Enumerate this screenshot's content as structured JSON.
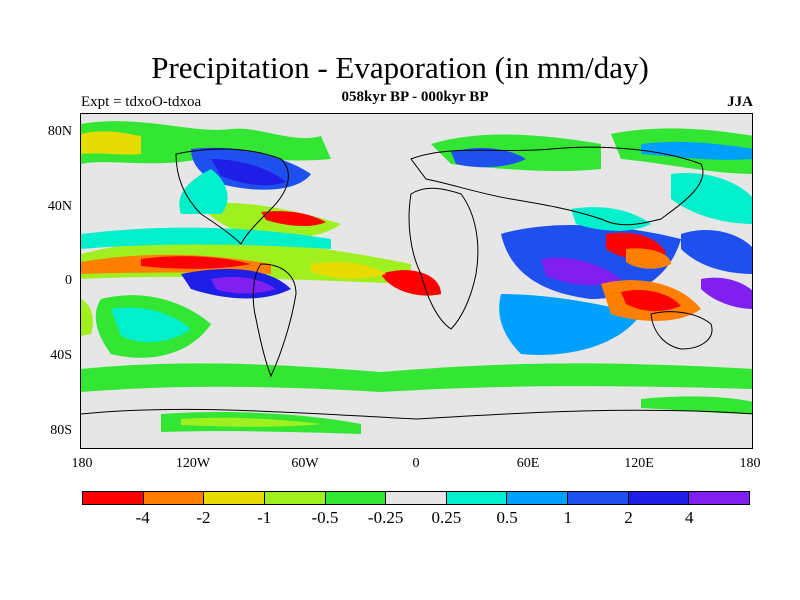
{
  "title": "Precipitation - Evaporation (in mm/day)",
  "subtitle": "058kyr BP - 000kyr BP",
  "left_label": "Expt = tdxoO-tdxoa",
  "right_label": "JJA",
  "lat_ticks": [
    "80N",
    "40N",
    "0",
    "40S",
    "80S"
  ],
  "lon_ticks": [
    "180",
    "120W",
    "60W",
    "0",
    "60E",
    "120E",
    "180"
  ],
  "colorbar": {
    "colors": [
      "#ff0000",
      "#ff8000",
      "#e6dc00",
      "#a0f020",
      "#33e633",
      "#e6e6e6",
      "#00f0cc",
      "#00a0ff",
      "#1e50f0",
      "#1e1ee6",
      "#8020f0"
    ],
    "labels": [
      "-4",
      "-2",
      "-1",
      "-0.5",
      "-0.25",
      "0.25",
      "0.5",
      "1",
      "2",
      "4"
    ]
  },
  "colors": {
    "background_field": "#e6e6e6",
    "coastline": "#000000"
  }
}
